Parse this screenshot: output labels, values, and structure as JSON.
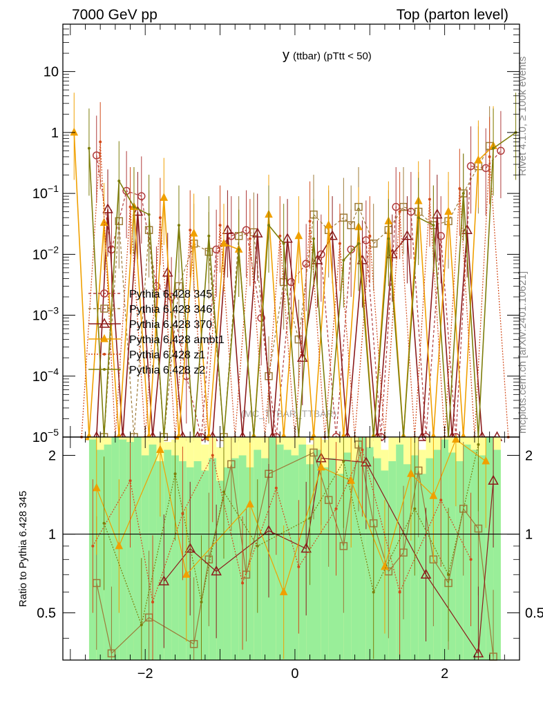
{
  "header": {
    "left": "7000 GeV pp",
    "right": "Top (parton level)"
  },
  "side_labels": {
    "rivet": "Rivet 4.1.0, ≥ 100k events",
    "mcplots": "mcplots.cern.ch [arXiv:2401.10621]"
  },
  "watermark": "(MC_TTBAR_TTBAR)",
  "chart_data": {
    "type": "line",
    "title_main": "y",
    "title_sub": "(ttbar)  (pTtt < 50)",
    "xlabel": "",
    "ylabel": "",
    "ratio_ylabel": "Ratio to Pythia 6.428 345",
    "xlim": [
      -3.1,
      3.0
    ],
    "ylim": [
      1e-05,
      60
    ],
    "ratio_ylim": [
      0.33,
      2.35
    ],
    "y_scale": "log",
    "x_ticks": [
      -2,
      0,
      2
    ],
    "x_tick_labels": [
      "−2",
      "0",
      "2"
    ],
    "y_ticks": [
      10,
      1,
      0.1,
      0.01,
      0.001,
      0.0001,
      1e-05
    ],
    "y_tick_labels": [
      "10",
      "1",
      "10^-1",
      "10^-2",
      "10^-3",
      "10^-4",
      "10^-5"
    ],
    "ratio_ticks": [
      0.5,
      1,
      2
    ],
    "ratio_tick_labels": [
      "0.5",
      "1",
      "2"
    ],
    "legend_position": "middle-left",
    "series": [
      {
        "name": "Pythia 6.428 345",
        "color": "#b03a3a",
        "marker": "circle",
        "dash": "dashed",
        "x": [
          -2.65,
          -2.45,
          -2.25,
          -2.05,
          -1.85,
          -1.65,
          -1.45,
          -1.25,
          -1.05,
          -0.85,
          -0.65,
          -0.45,
          -0.25,
          -0.05,
          0.15,
          0.35,
          0.55,
          0.75,
          0.95,
          1.15,
          1.35,
          1.55,
          1.75,
          1.95,
          2.15,
          2.35,
          2.55,
          2.75
        ],
        "y": [
          0.42,
          0.012,
          0.11,
          0.09,
          0.003,
          0.002,
          0.0001,
          1e-05,
          0.012,
          0.02,
          0.025,
          0.0009,
          1e-05,
          0.0035,
          0.007,
          0.01,
          1e-05,
          0.012,
          0.017,
          1e-05,
          0.06,
          0.05,
          1e-05,
          0.02,
          1e-05,
          0.28,
          0.26,
          0.5
        ]
      },
      {
        "name": "Pythia 6.428 346",
        "color": "#9c7a38",
        "marker": "square",
        "dash": "dashed",
        "x": [
          -2.55,
          -2.35,
          -2.15,
          -1.95,
          -1.75,
          -1.55,
          -1.35,
          -1.15,
          -0.95,
          -0.75,
          -0.55,
          -0.35,
          -0.15,
          0.05,
          0.25,
          0.45,
          0.65,
          0.75,
          0.85,
          1.05,
          1.25,
          1.45,
          1.65,
          1.85,
          2.05,
          2.25,
          2.45,
          2.6
        ],
        "y": [
          1e-05,
          0.035,
          1e-05,
          0.025,
          1e-05,
          0.003,
          0.015,
          0.011,
          1e-05,
          0.02,
          0.023,
          0.0001,
          0.0035,
          0.0004,
          0.045,
          0.025,
          0.04,
          0.03,
          0.06,
          0.015,
          0.025,
          0.06,
          0.05,
          0.03,
          0.035,
          0.1,
          0.28,
          0.6
        ]
      },
      {
        "name": "Pythia 6.428 370",
        "color": "#8b1a1a",
        "marker": "triangle",
        "dash": "solid",
        "x": [
          -2.65,
          -2.5,
          -2.3,
          -2.1,
          -1.9,
          -1.7,
          -1.5,
          -1.3,
          -1.1,
          -0.9,
          -0.7,
          -0.5,
          -0.3,
          -0.1,
          0.1,
          0.3,
          0.5,
          0.7,
          0.9,
          1.1,
          1.3,
          1.5,
          1.7,
          1.9,
          2.1,
          2.3,
          2.5,
          2.7
        ],
        "y": [
          1e-05,
          0.055,
          1e-05,
          0.05,
          1e-05,
          0.005,
          1e-05,
          1e-05,
          1e-05,
          0.025,
          1e-05,
          0.022,
          1e-05,
          0.018,
          0.0002,
          0.008,
          0.02,
          1e-05,
          0.008,
          1e-05,
          0.01,
          0.02,
          1e-05,
          0.045,
          1e-05,
          0.025,
          1e-05,
          1e-05
        ]
      },
      {
        "name": "Pythia 6.428 ambt1",
        "color": "#f0a000",
        "marker": "triangle-filled",
        "dash": "solid",
        "x": [
          -2.95,
          -2.75,
          -2.55,
          -2.35,
          -2.15,
          -1.95,
          -1.75,
          -1.55,
          -1.35,
          -1.15,
          -0.95,
          -0.75,
          -0.55,
          -0.35,
          -0.15,
          0.05,
          0.25,
          0.45,
          0.65,
          0.85,
          1.05,
          1.25,
          1.45,
          1.65,
          1.85,
          2.05,
          2.25,
          2.45,
          2.65
        ],
        "y": [
          1.0,
          1e-05,
          0.033,
          1e-05,
          0.06,
          1e-05,
          0.085,
          1e-05,
          0.022,
          1e-05,
          0.015,
          0.012,
          1e-05,
          0.045,
          1e-05,
          0.02,
          1e-05,
          0.03,
          1e-05,
          0.028,
          1e-05,
          0.035,
          1e-05,
          0.075,
          1e-05,
          0.05,
          1e-05,
          0.35,
          0.6
        ]
      },
      {
        "name": "Pythia 6.428 z1",
        "color": "#d24a1a",
        "marker": "dot",
        "dash": "dotted",
        "x": [
          -2.85,
          -2.6,
          -2.4,
          -2.2,
          -2.0,
          -1.8,
          -1.6,
          -1.4,
          -1.2,
          -1.0,
          -0.8,
          -0.6,
          -0.4,
          -0.2,
          0.0,
          0.2,
          0.4,
          0.6,
          0.8,
          1.0,
          1.2,
          1.4,
          1.6,
          1.8,
          2.0,
          2.2,
          2.4,
          2.6,
          2.85
        ],
        "y": [
          1e-05,
          0.7,
          1e-05,
          0.06,
          1e-05,
          0.04,
          1e-05,
          0.025,
          1e-05,
          0.03,
          1e-05,
          0.018,
          1e-05,
          0.02,
          1e-05,
          0.035,
          1e-05,
          0.015,
          1e-05,
          0.02,
          1e-05,
          0.05,
          1e-05,
          0.08,
          1e-05,
          0.12,
          1e-05,
          0.4,
          1e-05
        ]
      },
      {
        "name": "Pythia 6.428 z2",
        "color": "#7d7d0a",
        "marker": "dot",
        "dash": "solid",
        "x": [
          -2.75,
          -2.55,
          -2.35,
          -2.15,
          -1.95,
          -1.75,
          -1.55,
          -1.35,
          -1.15,
          -0.95,
          -0.75,
          -0.55,
          -0.35,
          -0.15,
          0.05,
          0.25,
          0.45,
          0.65,
          0.85,
          1.05,
          1.25,
          1.45,
          1.65,
          1.85,
          2.05,
          2.25,
          2.45,
          2.65,
          2.95
        ],
        "y": [
          0.55,
          1e-05,
          0.16,
          0.06,
          0.045,
          1e-05,
          0.03,
          1e-05,
          0.02,
          1e-05,
          0.012,
          1e-05,
          0.03,
          0.015,
          1e-05,
          0.018,
          1e-05,
          0.008,
          0.015,
          1e-05,
          0.018,
          1e-05,
          0.04,
          0.03,
          1e-05,
          0.1,
          1e-05,
          0.55,
          1.0
        ]
      }
    ],
    "ratio_series": [
      {
        "name": "Pythia 6.428 346",
        "color": "#9c7a38",
        "marker": "square",
        "x": [
          -2.65,
          -2.45,
          -1.95,
          -1.35,
          -1.15,
          -0.85,
          -0.65,
          -0.35,
          0.25,
          0.45,
          0.65,
          0.85,
          1.05,
          1.25,
          1.45,
          1.65,
          1.85,
          2.05,
          2.25,
          2.45,
          2.65
        ],
        "y": [
          0.65,
          0.35,
          0.48,
          0.38,
          0.8,
          1.85,
          0.7,
          1.7,
          2.05,
          1.35,
          0.9,
          2.2,
          1.1,
          0.72,
          0.85,
          1.75,
          0.8,
          0.65,
          1.25,
          1.05,
          0.34
        ]
      },
      {
        "name": "Pythia 6.428 370",
        "color": "#8b1a1a",
        "marker": "triangle",
        "x": [
          -1.75,
          -1.4,
          -1.05,
          -0.35,
          0.15,
          0.35,
          0.95,
          1.75,
          2.45,
          2.65
        ],
        "y": [
          0.66,
          0.88,
          0.72,
          1.03,
          0.88,
          1.95,
          1.88,
          0.7,
          0.35,
          1.6
        ]
      },
      {
        "name": "Pythia 6.428 ambt1",
        "color": "#f0a000",
        "marker": "triangle-filled",
        "x": [
          -2.65,
          -2.35,
          -1.8,
          -1.45,
          -0.6,
          -0.15,
          0.35,
          0.75,
          1.2,
          1.55,
          1.85,
          2.15,
          2.55
        ],
        "y": [
          1.5,
          0.9,
          2.1,
          0.7,
          1.3,
          0.6,
          1.8,
          1.6,
          0.75,
          1.7,
          1.4,
          2.3,
          1.9
        ]
      },
      {
        "name": "Pythia 6.428 z1",
        "color": "#d24a1a",
        "marker": "dot",
        "x": [
          -2.7,
          -2.2,
          -1.9,
          -1.5,
          -1.1,
          -0.7,
          -0.25,
          0.05,
          0.55,
          0.9,
          1.4,
          1.95,
          2.35
        ],
        "y": [
          0.9,
          1.6,
          0.55,
          1.2,
          2.0,
          0.65,
          1.5,
          0.75,
          1.25,
          2.1,
          0.6,
          1.35,
          0.8
        ]
      },
      {
        "name": "Pythia 6.428 z2",
        "color": "#7d7d0a",
        "marker": "dot",
        "x": [
          -2.55,
          -2.05,
          -1.6,
          -1.25,
          -0.95,
          -0.5,
          0.2,
          0.65,
          1.05,
          1.6,
          2.05,
          2.45
        ],
        "y": [
          1.1,
          0.45,
          1.7,
          0.55,
          1.45,
          0.9,
          1.15,
          1.9,
          0.6,
          1.25,
          0.7,
          2.2
        ]
      }
    ],
    "mc_uncertainty_band": {
      "x_edges": [
        -2.75,
        -2.65,
        -2.55,
        -2.45,
        -2.35,
        -2.25,
        -2.15,
        -2.05,
        -1.95,
        -1.85,
        -1.75,
        -1.65,
        -1.55,
        -1.45,
        -1.35,
        -1.25,
        -1.15,
        -1.05,
        -0.95,
        -0.85,
        -0.75,
        -0.65,
        -0.55,
        -0.45,
        -0.35,
        -0.25,
        -0.15,
        -0.05,
        0.05,
        0.15,
        0.25,
        0.35,
        0.45,
        0.55,
        0.65,
        0.75,
        0.85,
        0.95,
        1.05,
        1.15,
        1.25,
        1.35,
        1.45,
        1.55,
        1.65,
        1.75,
        1.85,
        1.95,
        2.05,
        2.15,
        2.25,
        2.35,
        2.45,
        2.55,
        2.65,
        2.75
      ],
      "green_upper": [
        2.3,
        2.1,
        2.2,
        2.35,
        2.3,
        2.25,
        2.35,
        2.0,
        2.2,
        1.9,
        2.1,
        2.0,
        1.9,
        1.8,
        1.9,
        1.75,
        1.95,
        1.6,
        1.8,
        1.95,
        2.0,
        1.8,
        2.1,
        1.95,
        2.35,
        2.2,
        2.1,
        2.0,
        2.2,
        1.85,
        2.1,
        1.8,
        1.95,
        1.7,
        2.05,
        1.9,
        2.35,
        2.15,
        1.95,
        1.75,
        1.9,
        2.2,
        1.85,
        2.0,
        1.7,
        1.95,
        2.1,
        2.3,
        2.05,
        1.9,
        2.2,
        2.1,
        2.0,
        2.35,
        2.1
      ],
      "yellow_upper": [
        2.35,
        2.35,
        2.35,
        2.35,
        2.35,
        2.35,
        2.35,
        2.35,
        2.35,
        2.35,
        2.25,
        2.3,
        2.35,
        2.35,
        2.35,
        2.2,
        2.35,
        2.15,
        2.35,
        2.35,
        2.35,
        2.35,
        2.35,
        2.35,
        2.35,
        2.35,
        2.35,
        2.35,
        2.35,
        2.2,
        2.35,
        2.3,
        2.35,
        2.35,
        2.35,
        2.35,
        2.35,
        2.35,
        2.35,
        2.1,
        2.35,
        2.35,
        2.35,
        2.35,
        2.1,
        2.35,
        2.35,
        2.35,
        2.35,
        2.35,
        2.35,
        2.35,
        2.35,
        2.35,
        2.35
      ],
      "lower": 0.33
    }
  }
}
